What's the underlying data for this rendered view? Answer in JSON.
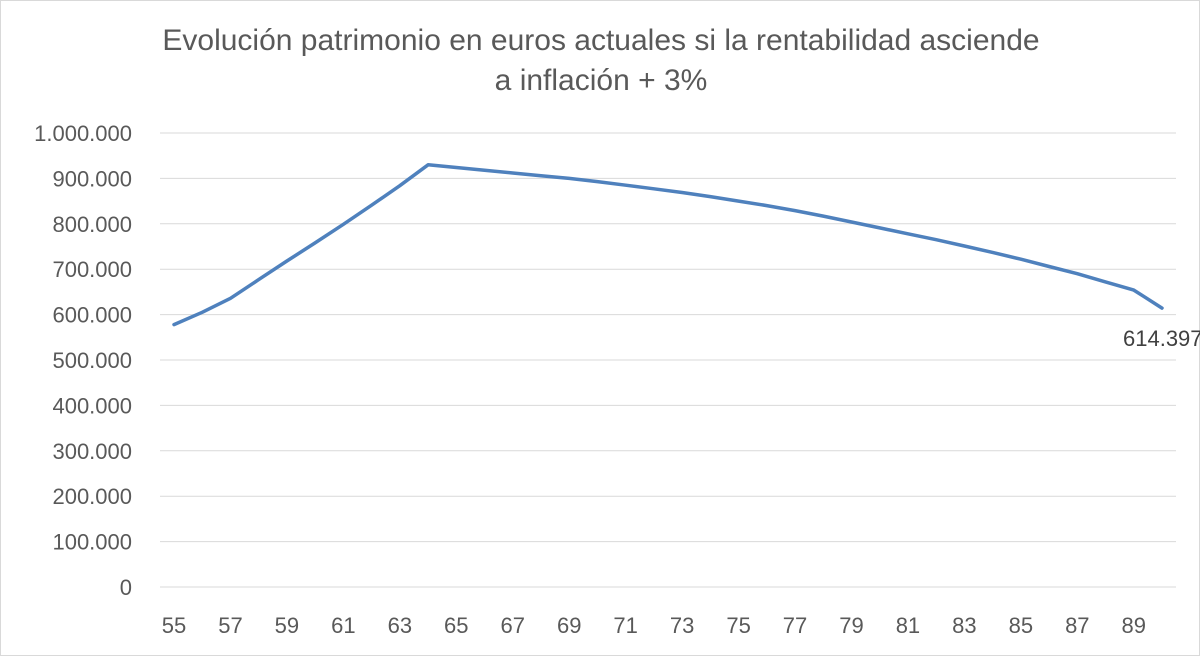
{
  "chart_data": {
    "type": "line",
    "title_lines": [
      "Evolución patrimonio en euros actuales si la rentabilidad asciende",
      "a inflación + 3%"
    ],
    "xlabel": "",
    "ylabel": "",
    "x": [
      55,
      56,
      57,
      58,
      59,
      60,
      61,
      62,
      63,
      64,
      65,
      66,
      67,
      68,
      69,
      70,
      71,
      72,
      73,
      74,
      75,
      76,
      77,
      78,
      79,
      80,
      81,
      82,
      83,
      84,
      85,
      86,
      87,
      88,
      89,
      90
    ],
    "x_tick_labels": [
      "55",
      "57",
      "59",
      "61",
      "63",
      "65",
      "67",
      "69",
      "71",
      "73",
      "75",
      "77",
      "79",
      "81",
      "83",
      "85",
      "87",
      "89"
    ],
    "series": [
      {
        "values": [
          578000,
          605000,
          636000,
          677000,
          718000,
          758000,
          799000,
          841000,
          884000,
          930000,
          924000,
          918000,
          912000,
          906000,
          900000,
          893000,
          885000,
          877000,
          869000,
          860000,
          850000,
          840000,
          829000,
          817000,
          804000,
          791000,
          778000,
          765000,
          751000,
          737000,
          722000,
          706000,
          690000,
          672000,
          654000,
          614397
        ],
        "color": "#4f81bd"
      }
    ],
    "ylim": [
      0,
      1000000
    ],
    "y_ticks": [
      {
        "value": 1000000,
        "label": "1.000.000"
      },
      {
        "value": 900000,
        "label": "900.000"
      },
      {
        "value": 800000,
        "label": "800.000"
      },
      {
        "value": 700000,
        "label": "700.000"
      },
      {
        "value": 600000,
        "label": "600.000"
      },
      {
        "value": 500000,
        "label": "500.000"
      },
      {
        "value": 400000,
        "label": "400.000"
      },
      {
        "value": 300000,
        "label": "300.000"
      },
      {
        "value": 200000,
        "label": "200.000"
      },
      {
        "value": 100000,
        "label": "100.000"
      },
      {
        "value": 0,
        "label": "0"
      }
    ],
    "grid": true,
    "legend": "none",
    "data_labels": [
      {
        "x": 90,
        "value": 614397,
        "text": "614.397"
      }
    ],
    "colors": {
      "line": "#4f81bd",
      "grid": "#d9d9d9",
      "text": "#595959"
    }
  }
}
